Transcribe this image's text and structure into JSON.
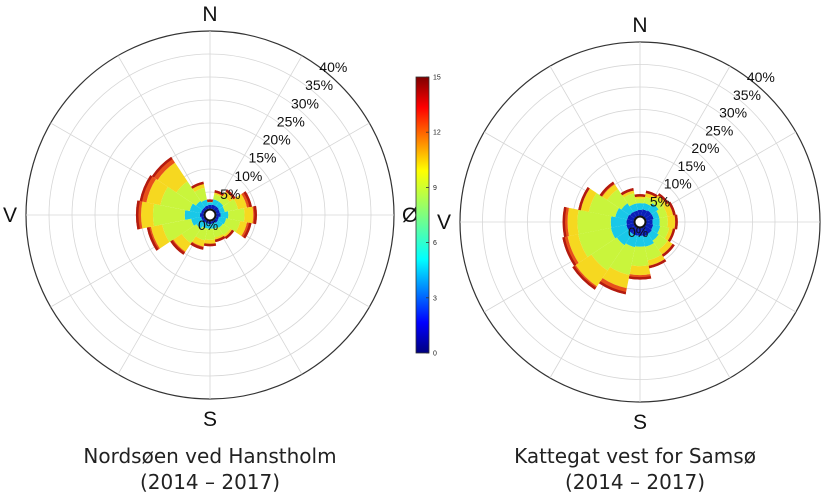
{
  "compass": {
    "north": "N",
    "south": "S",
    "west": "V",
    "east": "Ø"
  },
  "ring_labels": [
    "0%",
    "5%",
    "10%",
    "15%",
    "20%",
    "25%",
    "30%",
    "35%",
    "40%"
  ],
  "colorbar": {
    "min": 0,
    "max": 15,
    "ticks": [
      "0",
      "3",
      "6",
      "9",
      "12",
      "15"
    ]
  },
  "chart_data": [
    {
      "type": "wind-rose",
      "title": "Nordsøen ved Hanstholm",
      "subtitle": "(2014 – 2017)",
      "r_max": 40,
      "speed_bins": [
        {
          "max": 3,
          "color": "#0a1fb8"
        },
        {
          "max": 6,
          "color": "#19c8e8"
        },
        {
          "max": 9,
          "color": "#c9f53c"
        },
        {
          "max": 12,
          "color": "#f6d820"
        },
        {
          "max": 15,
          "color": "#e8501a"
        }
      ],
      "directions_deg": [
        0,
        22.5,
        45,
        67.5,
        90,
        112.5,
        135,
        157.5,
        180,
        202.5,
        225,
        247.5,
        270,
        292.5,
        315,
        337.5
      ],
      "frequency_pct": [
        [
          2.2,
          2.8,
          2.9,
          3.1,
          3.4
        ],
        [
          2.3,
          3.5,
          4.6,
          5.1,
          5.5
        ],
        [
          2.3,
          3.5,
          5.1,
          6.1,
          6.7
        ],
        [
          2.2,
          3.3,
          6.2,
          8.2,
          9.3
        ],
        [
          2.3,
          4.0,
          7.5,
          9.4,
          10.2
        ],
        [
          2.0,
          3.6,
          6.7,
          8.2,
          9.2
        ],
        [
          2.1,
          3.4,
          5.3,
          5.8,
          6.3
        ],
        [
          1.9,
          3.1,
          5.0,
          5.5,
          6.0
        ],
        [
          2.0,
          3.0,
          5.4,
          6.3,
          6.8
        ],
        [
          1.9,
          3.0,
          5.6,
          7.0,
          7.7
        ],
        [
          2.0,
          3.6,
          7.4,
          9.6,
          10.4
        ],
        [
          2.0,
          4.2,
          10.6,
          13.1,
          14.0
        ],
        [
          2.2,
          5.5,
          12.4,
          15.0,
          16.1
        ],
        [
          2.0,
          4.5,
          11.0,
          14.1,
          15.6
        ],
        [
          2.0,
          3.7,
          8.8,
          13.7,
          15.2
        ],
        [
          2.1,
          3.4,
          6.0,
          7.0,
          7.4
        ]
      ]
    },
    {
      "type": "wind-rose",
      "title": "Kattegat vest for Samsø",
      "subtitle": "(2014 – 2017)",
      "r_max": 40,
      "speed_bins": [
        {
          "max": 3,
          "color": "#0a1fb8"
        },
        {
          "max": 6,
          "color": "#19c8e8"
        },
        {
          "max": 9,
          "color": "#c9f53c"
        },
        {
          "max": 12,
          "color": "#f6d820"
        },
        {
          "max": 15,
          "color": "#e8501a"
        }
      ],
      "directions_deg": [
        0,
        22.5,
        45,
        67.5,
        90,
        112.5,
        135,
        157.5,
        180,
        202.5,
        225,
        247.5,
        270,
        292.5,
        315,
        337.5
      ],
      "frequency_pct": [
        [
          2.7,
          4.2,
          5.2,
          5.8,
          6.2
        ],
        [
          2.9,
          4.3,
          5.7,
          6.6,
          7.1
        ],
        [
          3.1,
          5.0,
          6.4,
          7.1,
          7.7
        ],
        [
          3.1,
          4.4,
          6.2,
          7.5,
          8.1
        ],
        [
          2.8,
          4.4,
          6.2,
          7.8,
          8.4
        ],
        [
          3.0,
          4.6,
          6.6,
          7.5,
          8.0
        ],
        [
          3.2,
          5.0,
          7.4,
          8.7,
          9.3
        ],
        [
          3.3,
          5.6,
          8.7,
          9.9,
          10.5
        ],
        [
          3.1,
          5.5,
          9.8,
          11.8,
          12.8
        ],
        [
          3.1,
          5.7,
          12.0,
          15.0,
          16.4
        ],
        [
          3.1,
          6.2,
          13.0,
          17.2,
          18.1
        ],
        [
          3.1,
          6.6,
          14.0,
          16.4,
          17.6
        ],
        [
          3.0,
          6.5,
          13.9,
          16.1,
          17.2
        ],
        [
          2.9,
          5.6,
          11.6,
          13.4,
          14.0
        ],
        [
          2.7,
          5.0,
          8.8,
          10.1,
          10.8
        ],
        [
          2.6,
          4.2,
          6.5,
          7.1,
          7.7
        ]
      ]
    }
  ]
}
